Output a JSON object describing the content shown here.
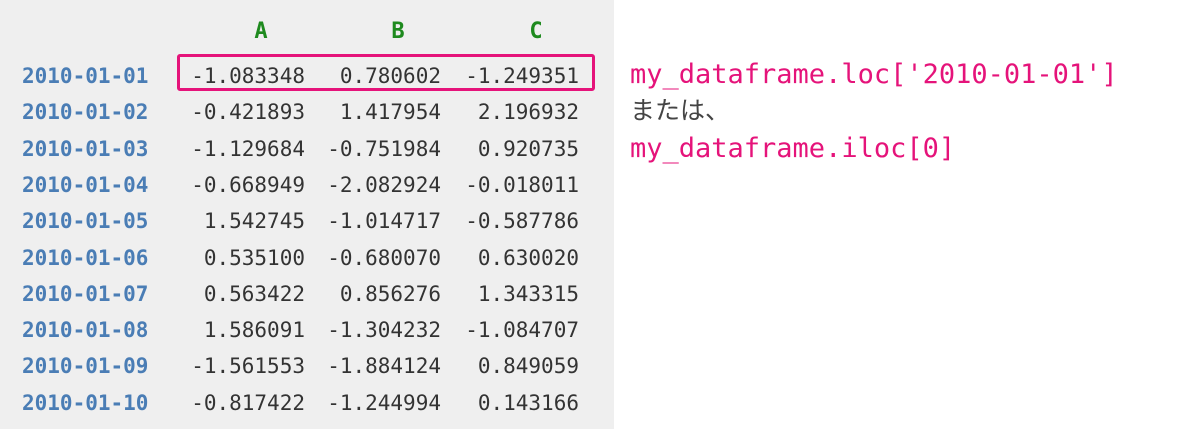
{
  "colors": {
    "index": "#4a7db5",
    "header": "#1e8a1e",
    "accent": "#e5137a"
  },
  "table": {
    "columns": [
      "A",
      "B",
      "C"
    ],
    "rows": [
      {
        "index": "2010-01-01",
        "values": [
          "-1.083348",
          "0.780602",
          "-1.249351"
        ]
      },
      {
        "index": "2010-01-02",
        "values": [
          "-0.421893",
          "1.417954",
          "2.196932"
        ]
      },
      {
        "index": "2010-01-03",
        "values": [
          "-1.129684",
          "-0.751984",
          "0.920735"
        ]
      },
      {
        "index": "2010-01-04",
        "values": [
          "-0.668949",
          "-2.082924",
          "-0.018011"
        ]
      },
      {
        "index": "2010-01-05",
        "values": [
          "1.542745",
          "-1.014717",
          "-0.587786"
        ]
      },
      {
        "index": "2010-01-06",
        "values": [
          "0.535100",
          "-0.680070",
          "0.630020"
        ]
      },
      {
        "index": "2010-01-07",
        "values": [
          "0.563422",
          "0.856276",
          "1.343315"
        ]
      },
      {
        "index": "2010-01-08",
        "values": [
          "1.586091",
          "-1.304232",
          "-1.084707"
        ]
      },
      {
        "index": "2010-01-09",
        "values": [
          "-1.561553",
          "-1.884124",
          "0.849059"
        ]
      },
      {
        "index": "2010-01-10",
        "values": [
          "-0.817422",
          "-1.244994",
          "0.143166"
        ]
      }
    ]
  },
  "annotation": {
    "code_loc": "my_dataframe.loc['2010-01-01']",
    "separator": "または、",
    "code_iloc": "my_dataframe.iloc[0]"
  }
}
